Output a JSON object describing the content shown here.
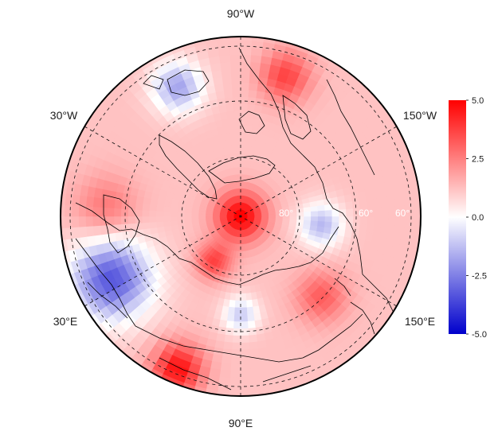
{
  "map": {
    "projection": "north polar stereographic",
    "longitude_labels": [
      "90°W",
      "30°W",
      "150°W",
      "30°E",
      "150°E",
      "90°E"
    ],
    "latitude_labels": [
      "60°",
      "80°",
      "60°"
    ],
    "field": {
      "type": "heatmap",
      "description_values": "gridded anomaly field, positive near pole and over Eurasia/Pacific sectors, negative over Europe",
      "scale": [
        -5.0,
        5.0
      ]
    },
    "colorbar": {
      "ticks": [
        "5.0",
        "2.5",
        "0.0",
        "-2.5",
        "-5.0"
      ],
      "colors": {
        "max": "#ff0000",
        "mid": "#ffffff",
        "min": "#0000cc"
      }
    }
  }
}
